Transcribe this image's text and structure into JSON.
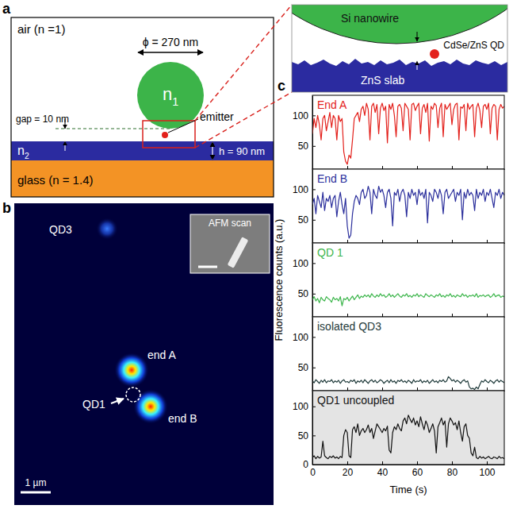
{
  "panel_a": {
    "label": "a",
    "air": "air (n =1)",
    "diameter": "ϕ = 270 nm",
    "core_index": {
      "base": "n",
      "sub": "1"
    },
    "slab_index": {
      "base": "n",
      "sub": "2"
    },
    "gap": "gap = 10 nm",
    "emitter": "emitter",
    "thickness": "h = 90 nm",
    "glass": "glass (n = 1.4)",
    "zoom": {
      "nanowire": "Si nanowire",
      "dot": "CdSe/ZnS QD",
      "slab": "ZnS slab"
    }
  },
  "panel_b": {
    "label": "b",
    "spots": {
      "qd3": "QD3",
      "end_a": "end A",
      "qd1": "QD1",
      "end_b": "end B"
    },
    "inset": "AFM scan",
    "scale_bar": "1 µm"
  },
  "panel_c": {
    "label": "c",
    "y_label": "Fluorescence counts (a.u.)",
    "x_label": "Time (s)"
  },
  "chart_data": [
    {
      "type": "line",
      "title": "End A",
      "color": "#e3211c",
      "x": [
        0,
        1,
        2,
        3,
        4,
        5,
        6,
        7,
        8,
        9,
        10,
        11,
        12,
        13,
        14,
        15,
        16,
        17,
        18,
        19,
        20,
        21,
        22,
        23,
        24,
        25,
        26,
        27,
        28,
        29,
        30,
        31,
        32,
        33,
        34,
        35,
        36,
        37,
        38,
        39,
        40,
        41,
        42,
        43,
        44,
        45,
        46,
        47,
        48,
        49,
        50,
        51,
        52,
        53,
        54,
        55,
        56,
        57,
        58,
        59,
        60,
        61,
        62,
        63,
        64,
        65,
        66,
        67,
        68,
        69,
        70,
        71,
        72,
        73,
        74,
        75,
        76,
        77,
        78,
        79,
        80,
        81,
        82,
        83,
        84,
        85,
        86,
        87,
        88,
        89,
        90,
        91,
        92,
        93,
        94,
        95,
        96,
        97,
        98,
        99,
        100,
        101,
        102,
        103,
        104,
        105,
        106,
        107,
        108,
        109,
        110
      ],
      "values": [
        70,
        95,
        80,
        100,
        85,
        60,
        95,
        100,
        75,
        90,
        105,
        80,
        100,
        95,
        60,
        100,
        90,
        95,
        40,
        25,
        20,
        35,
        30,
        60,
        95,
        100,
        105,
        90,
        110,
        115,
        100,
        120,
        110,
        60,
        115,
        120,
        105,
        118,
        70,
        112,
        120,
        108,
        115,
        55,
        118,
        110,
        120,
        100,
        65,
        115,
        118,
        112,
        75,
        120,
        115,
        110,
        60,
        118,
        120,
        108,
        115,
        120,
        70,
        112,
        118,
        105,
        120,
        58,
        115,
        110,
        120,
        116,
        80,
        112,
        120,
        65,
        118,
        110,
        115,
        120,
        85,
        110,
        118,
        120,
        60,
        114,
        112,
        118,
        75,
        120,
        110,
        115,
        118,
        65,
        112,
        120,
        108,
        80,
        115,
        118,
        110,
        120,
        70,
        112,
        118,
        115,
        60,
        110,
        118,
        112,
        115
      ],
      "xlim": [
        0,
        110
      ],
      "xticks": [
        0,
        20,
        40,
        60,
        80,
        100
      ],
      "ylim": [
        12,
        133
      ],
      "yticks": [
        50,
        100
      ],
      "tick_labels": "y"
    },
    {
      "type": "line",
      "title": "End B",
      "color": "#2b2f9c",
      "x": [
        0,
        1,
        2,
        3,
        4,
        5,
        6,
        7,
        8,
        9,
        10,
        11,
        12,
        13,
        14,
        15,
        16,
        17,
        18,
        19,
        20,
        21,
        22,
        23,
        24,
        25,
        26,
        27,
        28,
        29,
        30,
        31,
        32,
        33,
        34,
        35,
        36,
        37,
        38,
        39,
        40,
        41,
        42,
        43,
        44,
        45,
        46,
        47,
        48,
        49,
        50,
        51,
        52,
        53,
        54,
        55,
        56,
        57,
        58,
        59,
        60,
        61,
        62,
        63,
        64,
        65,
        66,
        67,
        68,
        69,
        70,
        71,
        72,
        73,
        74,
        75,
        76,
        77,
        78,
        79,
        80,
        81,
        82,
        83,
        84,
        85,
        86,
        87,
        88,
        89,
        90,
        91,
        92,
        93,
        94,
        95,
        96,
        97,
        98,
        99,
        100,
        101,
        102,
        103,
        104,
        105,
        106,
        107,
        108,
        109,
        110
      ],
      "values": [
        75,
        85,
        60,
        90,
        80,
        70,
        95,
        65,
        85,
        80,
        90,
        70,
        85,
        90,
        55,
        80,
        95,
        75,
        60,
        85,
        40,
        20,
        25,
        60,
        80,
        90,
        85,
        75,
        95,
        100,
        85,
        90,
        105,
        95,
        60,
        100,
        90,
        85,
        105,
        95,
        100,
        90,
        70,
        95,
        100,
        85,
        40,
        95,
        90,
        100,
        80,
        95,
        100,
        90,
        55,
        95,
        85,
        100,
        90,
        95,
        75,
        100,
        90,
        95,
        85,
        100,
        45,
        95,
        90,
        80,
        100,
        95,
        85,
        100,
        90,
        60,
        95,
        100,
        85,
        90,
        95,
        100,
        80,
        95,
        90,
        100,
        50,
        95,
        85,
        100,
        90,
        95,
        90,
        65,
        100,
        85,
        95,
        90,
        100,
        80,
        95,
        90,
        100,
        85,
        70,
        95,
        90,
        100,
        85,
        95,
        90
      ],
      "xlim": [
        0,
        110
      ],
      "xticks": [
        0,
        20,
        40,
        60,
        80,
        100
      ],
      "ylim": [
        12,
        133
      ],
      "yticks": [
        50,
        100
      ],
      "tick_labels": "y"
    },
    {
      "type": "line",
      "title": "QD 1",
      "color": "#3bb54a",
      "x": [
        0,
        1,
        2,
        3,
        4,
        5,
        6,
        7,
        8,
        9,
        10,
        11,
        12,
        13,
        14,
        15,
        16,
        17,
        18,
        19,
        20,
        21,
        22,
        23,
        24,
        25,
        26,
        27,
        28,
        29,
        30,
        31,
        32,
        33,
        34,
        35,
        36,
        37,
        38,
        39,
        40,
        41,
        42,
        43,
        44,
        45,
        46,
        47,
        48,
        49,
        50,
        51,
        52,
        53,
        54,
        55,
        56,
        57,
        58,
        59,
        60,
        61,
        62,
        63,
        64,
        65,
        66,
        67,
        68,
        69,
        70,
        71,
        72,
        73,
        74,
        75,
        76,
        77,
        78,
        79,
        80,
        81,
        82,
        83,
        84,
        85,
        86,
        87,
        88,
        89,
        90,
        91,
        92,
        93,
        94,
        95,
        96,
        97,
        98,
        99,
        100,
        101,
        102,
        103,
        104,
        105,
        106,
        107,
        108,
        109,
        110
      ],
      "values": [
        40,
        45,
        38,
        42,
        35,
        44,
        40,
        38,
        45,
        42,
        40,
        36,
        44,
        40,
        42,
        38,
        45,
        30,
        42,
        40,
        44,
        38,
        42,
        46,
        40,
        44,
        48,
        42,
        46,
        44,
        48,
        45,
        48,
        44,
        50,
        46,
        44,
        48,
        45,
        50,
        46,
        48,
        44,
        46,
        50,
        45,
        48,
        44,
        47,
        50,
        46,
        44,
        48,
        46,
        50,
        45,
        47,
        44,
        48,
        46,
        50,
        45,
        48,
        46,
        44,
        50,
        47,
        45,
        48,
        46,
        44,
        48,
        46,
        50,
        45,
        47,
        44,
        48,
        46,
        50,
        45,
        47,
        44,
        48,
        46,
        45,
        50,
        46,
        48,
        44,
        47,
        46,
        48,
        45,
        50,
        44,
        47,
        46,
        48,
        45,
        47,
        48,
        44,
        46,
        50,
        45,
        47,
        48,
        44,
        46,
        45
      ],
      "xlim": [
        0,
        110
      ],
      "xticks": [
        0,
        20,
        40,
        60,
        80,
        100
      ],
      "ylim": [
        12,
        133
      ],
      "yticks": [
        50,
        100
      ],
      "tick_labels": "y"
    },
    {
      "type": "line",
      "title": "isolated QD3",
      "color": "#1f3a3a",
      "x": [
        0,
        1,
        2,
        3,
        4,
        5,
        6,
        7,
        8,
        9,
        10,
        11,
        12,
        13,
        14,
        15,
        16,
        17,
        18,
        19,
        20,
        21,
        22,
        23,
        24,
        25,
        26,
        27,
        28,
        29,
        30,
        31,
        32,
        33,
        34,
        35,
        36,
        37,
        38,
        39,
        40,
        41,
        42,
        43,
        44,
        45,
        46,
        47,
        48,
        49,
        50,
        51,
        52,
        53,
        54,
        55,
        56,
        57,
        58,
        59,
        60,
        61,
        62,
        63,
        64,
        65,
        66,
        67,
        68,
        69,
        70,
        71,
        72,
        73,
        74,
        75,
        76,
        77,
        78,
        79,
        80,
        81,
        82,
        83,
        84,
        85,
        86,
        87,
        88,
        89,
        90,
        91,
        92,
        93,
        94,
        95,
        96,
        97,
        98,
        99,
        100,
        101,
        102,
        103,
        104,
        105,
        106,
        107,
        108,
        109,
        110
      ],
      "values": [
        28,
        25,
        30,
        27,
        24,
        29,
        26,
        30,
        25,
        28,
        27,
        30,
        25,
        28,
        26,
        29,
        24,
        28,
        30,
        26,
        27,
        25,
        29,
        27,
        30,
        24,
        28,
        26,
        29,
        25,
        30,
        27,
        24,
        28,
        30,
        26,
        29,
        25,
        27,
        30,
        28,
        24,
        27,
        29,
        25,
        30,
        26,
        28,
        24,
        29,
        27,
        30,
        26,
        28,
        25,
        29,
        27,
        24,
        30,
        26,
        28,
        27,
        30,
        25,
        28,
        26,
        29,
        24,
        27,
        30,
        26,
        28,
        25,
        29,
        27,
        30,
        26,
        28,
        35,
        32,
        28,
        30,
        26,
        29,
        27,
        24,
        28,
        30,
        26,
        28,
        18,
        15,
        16,
        14,
        18,
        15,
        22,
        28,
        26,
        30,
        27,
        25,
        29,
        27,
        24,
        28,
        30,
        26,
        29,
        27,
        25
      ],
      "xlim": [
        0,
        110
      ],
      "xticks": [
        0,
        20,
        40,
        60,
        80,
        100
      ],
      "ylim": [
        12,
        133
      ],
      "yticks": [
        50,
        100
      ],
      "tick_labels": "y"
    },
    {
      "type": "line",
      "title": "QD1 uncoupled",
      "color": "#111111",
      "x": [
        0,
        1,
        2,
        3,
        4,
        5,
        6,
        7,
        8,
        9,
        10,
        11,
        12,
        13,
        14,
        15,
        16,
        17,
        18,
        19,
        20,
        21,
        22,
        23,
        24,
        25,
        26,
        27,
        28,
        29,
        30,
        31,
        32,
        33,
        34,
        35,
        36,
        37,
        38,
        39,
        40,
        41,
        42,
        43,
        44,
        45,
        46,
        47,
        48,
        49,
        50,
        51,
        52,
        53,
        54,
        55,
        56,
        57,
        58,
        59,
        60,
        61,
        62,
        63,
        64,
        65,
        66,
        67,
        68,
        69,
        70,
        71,
        72,
        73,
        74,
        75,
        76,
        77,
        78,
        79,
        80,
        81,
        82,
        83,
        84,
        85,
        86,
        87,
        88,
        89,
        90,
        91,
        92,
        93,
        94,
        95,
        96,
        97,
        98,
        99,
        100,
        101,
        102,
        103,
        104,
        105,
        106,
        107,
        108,
        109,
        110
      ],
      "values": [
        12,
        15,
        10,
        14,
        11,
        13,
        40,
        15,
        12,
        10,
        14,
        12,
        15,
        11,
        13,
        10,
        14,
        12,
        50,
        60,
        55,
        15,
        12,
        60,
        65,
        55,
        70,
        50,
        58,
        62,
        55,
        60,
        68,
        55,
        62,
        45,
        58,
        70,
        65,
        60,
        55,
        62,
        58,
        66,
        25,
        20,
        55,
        65,
        60,
        70,
        62,
        58,
        75,
        80,
        70,
        85,
        78,
        72,
        80,
        68,
        75,
        65,
        82,
        70,
        60,
        75,
        68,
        55,
        62,
        70,
        58,
        20,
        65,
        72,
        80,
        68,
        75,
        30,
        70,
        80,
        75,
        68,
        72,
        60,
        75,
        55,
        40,
        65,
        70,
        50,
        45,
        20,
        15,
        30,
        12,
        10,
        14,
        11,
        13,
        10,
        12,
        14,
        11,
        10,
        13,
        12,
        10,
        14,
        11,
        12,
        10
      ],
      "xlim": [
        0,
        110
      ],
      "xticks": [
        0,
        20,
        40,
        60,
        80,
        100
      ],
      "ylim": [
        0,
        127
      ],
      "yticks": [
        0,
        50,
        100
      ]
    }
  ]
}
